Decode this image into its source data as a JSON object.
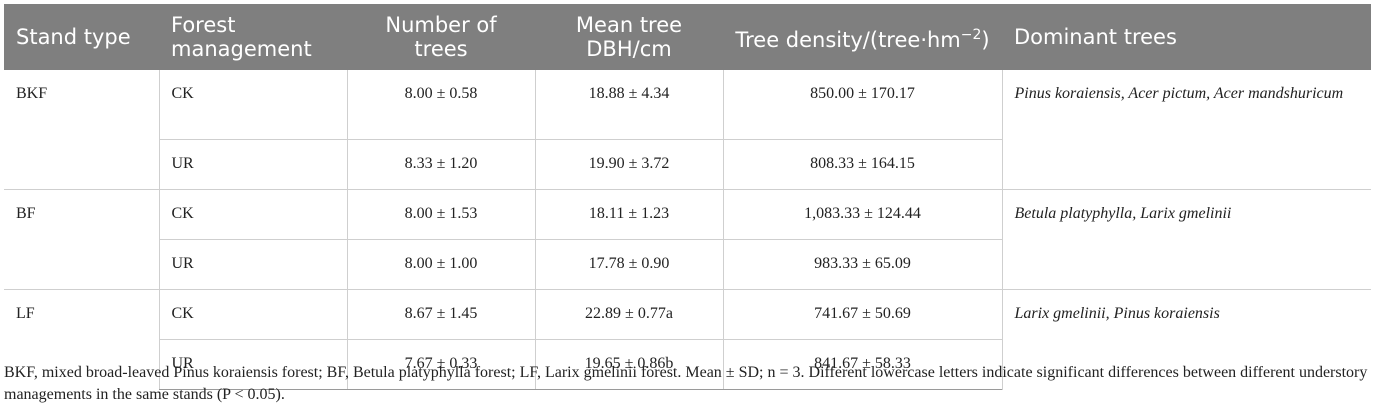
{
  "table": {
    "headers": {
      "stand_type": "Stand type",
      "forest_management": "Forest management",
      "number_of_trees": "Number of trees",
      "mean_tree_dbh": "Mean tree DBH/cm",
      "tree_density_prefix": "Tree density/(tree·hm",
      "tree_density_exp": "−2",
      "tree_density_suffix": ")",
      "dominant_trees": "Dominant trees"
    },
    "groups": [
      {
        "stand_type": "BKF",
        "dominant_trees": "Pinus koraiensis, Acer pictum, Acer mandshuricum",
        "rows": [
          {
            "management": "CK",
            "number_of_trees": "8.00 ± 0.58",
            "mean_dbh": "18.88 ± 4.34",
            "density": "850.00 ± 170.17"
          },
          {
            "management": "UR",
            "number_of_trees": "8.33 ± 1.20",
            "mean_dbh": "19.90 ± 3.72",
            "density": "808.33 ± 164.15"
          }
        ]
      },
      {
        "stand_type": "BF",
        "dominant_trees": "Betula platyphylla, Larix gmelinii",
        "rows": [
          {
            "management": "CK",
            "number_of_trees": "8.00 ± 1.53",
            "mean_dbh": "18.11 ± 1.23",
            "density": "1,083.33 ± 124.44"
          },
          {
            "management": "UR",
            "number_of_trees": "8.00 ± 1.00",
            "mean_dbh": "17.78 ± 0.90",
            "density": "983.33 ± 65.09"
          }
        ]
      },
      {
        "stand_type": "LF",
        "dominant_trees": "Larix gmelinii, Pinus koraiensis",
        "rows": [
          {
            "management": "CK",
            "number_of_trees": "8.67 ± 1.45",
            "mean_dbh": "22.89 ± 0.77a",
            "density": "741.67 ± 50.69"
          },
          {
            "management": "UR",
            "number_of_trees": "7.67 ± 0.33",
            "mean_dbh": "19.65 ± 0.86b",
            "density": "841.67 ± 58.33"
          }
        ]
      }
    ]
  },
  "footnote": "BKF, mixed broad-leaved Pinus koraiensis forest; BF, Betula platyphylla forest; LF, Larix gmelinii forest. Mean ± SD; n = 3. Different lowercase letters indicate significant differences between different understory managements in the same stands (P < 0.05).",
  "colors": {
    "header_background": "#7f7f7f",
    "header_text": "#ffffff",
    "body_text": "#222222",
    "rule": "#cfcfcf"
  }
}
